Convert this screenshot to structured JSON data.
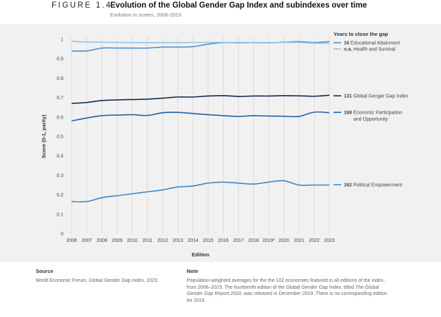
{
  "figure_label": "FIGURE 1.4",
  "chart_data": {
    "type": "line",
    "title": "Evolution of the Global Gender Gap Index and subindexes over time",
    "subtitle": "Evolution in scores, 2006-2023",
    "xlabel": "Edition",
    "ylabel": "Score (0-1, parity)",
    "ylim": [
      0,
      1
    ],
    "yticks": [
      "0",
      "0.1",
      "0.2",
      "0.3",
      "0.4",
      "0.5",
      "0.6",
      "0.7",
      "0.8",
      "0.9",
      "1"
    ],
    "x": [
      "2006",
      "2007",
      "2008",
      "2009",
      "2010",
      "2011",
      "2012",
      "2013",
      "2014",
      "2015",
      "2016",
      "2017",
      "2018",
      "2019*",
      "2020",
      "2021",
      "2022",
      "2023"
    ],
    "legend_title": "Years to close the gap",
    "series": [
      {
        "years": "16",
        "name": "Educational Attainment",
        "color": "#4a90d0",
        "values": [
          0.94,
          0.94,
          0.955,
          0.955,
          0.955,
          0.955,
          0.96,
          0.96,
          0.962,
          0.975,
          0.983,
          0.982,
          0.983,
          0.982,
          0.985,
          0.988,
          0.983,
          0.988
        ]
      },
      {
        "years": "n.a.",
        "name": "Health and Survival",
        "color": "#8ec3ea",
        "values": [
          0.99,
          0.986,
          0.985,
          0.984,
          0.983,
          0.983,
          0.983,
          0.983,
          0.984,
          0.984,
          0.984,
          0.984,
          0.983,
          0.983,
          0.984,
          0.984,
          0.98,
          0.98
        ]
      },
      {
        "years": "131",
        "name": "Global Genger Gap Index",
        "color": "#12284c",
        "values": [
          0.67,
          0.675,
          0.685,
          0.688,
          0.69,
          0.692,
          0.697,
          0.703,
          0.703,
          0.708,
          0.71,
          0.706,
          0.708,
          0.708,
          0.71,
          0.709,
          0.707,
          0.712
        ]
      },
      {
        "years": "169",
        "name": "Economic Participation and Opportunity",
        "name_lines": [
          "Economic Participation",
          "and Opportunity"
        ],
        "color": "#1b5fa6",
        "values": [
          0.58,
          0.595,
          0.607,
          0.61,
          0.612,
          0.608,
          0.622,
          0.624,
          0.618,
          0.612,
          0.607,
          0.603,
          0.607,
          0.605,
          0.604,
          0.603,
          0.625,
          0.622
        ]
      },
      {
        "years": "162",
        "name": "Political Empowerment",
        "color": "#3b84c4",
        "values": [
          0.165,
          0.165,
          0.185,
          0.195,
          0.205,
          0.215,
          0.225,
          0.24,
          0.245,
          0.26,
          0.265,
          0.26,
          0.255,
          0.265,
          0.272,
          0.25,
          0.25,
          0.25
        ]
      }
    ]
  },
  "source": {
    "heading": "Source",
    "text": "World Economic Forum, Global Gender Gap Index, 2023."
  },
  "note": {
    "heading": "Note",
    "line1": "Population-weighted averages for the the 102 economies featured in all editions of the index,",
    "line2": "from 2006–2023. The fourteenth edition of the Global Gender Gap Index, titled",
    "line2_italic": "The Global",
    "line3_italic": "Gender Gap Report 2020",
    "line3": ", was released in December 2019. There is no corresponding edition",
    "line4": "for 2019."
  }
}
